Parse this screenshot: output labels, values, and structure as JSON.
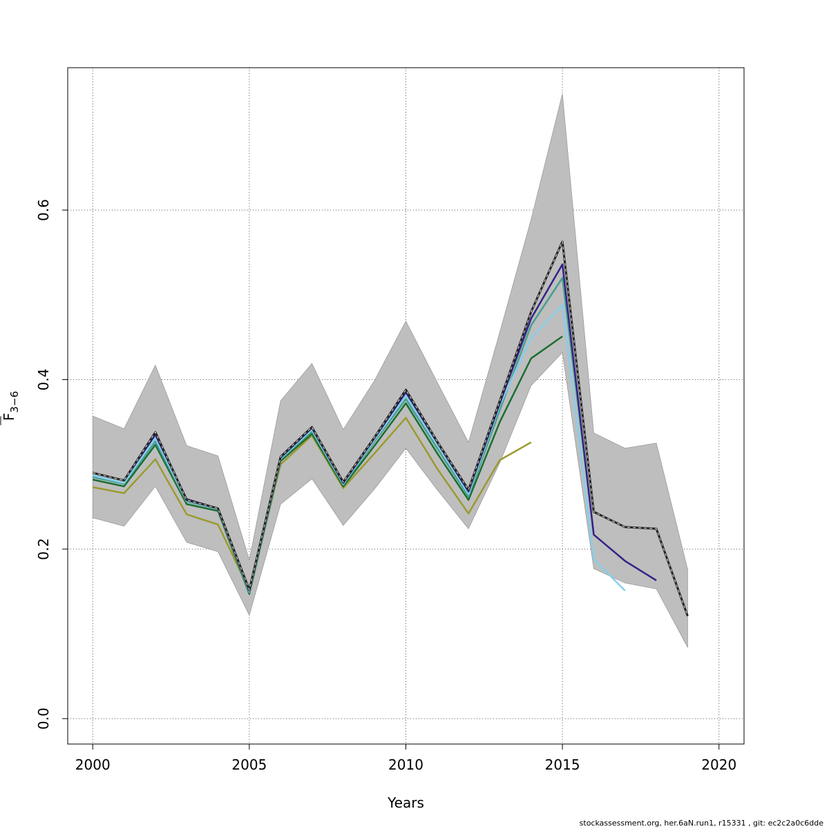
{
  "chart_data": {
    "type": "line",
    "xlabel": "Years",
    "ylabel": "F",
    "ylabel_sub": "3-6",
    "xlim": [
      1999.2,
      2020.8
    ],
    "ylim": [
      -0.03,
      0.768
    ],
    "x_ticks": [
      2000,
      2005,
      2010,
      2015,
      2020
    ],
    "y_ticks": [
      0.0,
      0.2,
      0.4,
      0.6
    ],
    "y_tick_labels": [
      "0.0",
      "0.2",
      "0.4",
      "0.6"
    ],
    "grid": true,
    "confidence_band": {
      "color": "#bebebe",
      "x": [
        2000,
        2001,
        2002,
        2003,
        2004,
        2005,
        2006,
        2007,
        2008,
        2009,
        2010,
        2011,
        2012,
        2013,
        2014,
        2015,
        2016,
        2017,
        2018,
        2019
      ],
      "lower": [
        0.237,
        0.227,
        0.274,
        0.208,
        0.197,
        0.122,
        0.253,
        0.283,
        0.228,
        0.271,
        0.319,
        0.27,
        0.224,
        0.302,
        0.393,
        0.432,
        0.177,
        0.16,
        0.153,
        0.084
      ],
      "upper": [
        0.357,
        0.342,
        0.417,
        0.322,
        0.31,
        0.187,
        0.375,
        0.419,
        0.341,
        0.399,
        0.469,
        0.397,
        0.326,
        0.456,
        0.589,
        0.737,
        0.337,
        0.319,
        0.325,
        0.176
      ]
    },
    "series": [
      {
        "color": "#9a9a30",
        "dashed": false,
        "x": [
          2000,
          2001,
          2002,
          2003,
          2004,
          2005,
          2006,
          2007,
          2008,
          2009,
          2010,
          2011,
          2012,
          2013,
          2014
        ],
        "values": [
          0.273,
          0.266,
          0.306,
          0.241,
          0.229,
          0.152,
          0.3,
          0.334,
          0.272,
          0.313,
          0.355,
          0.295,
          0.242,
          0.305,
          0.326
        ]
      },
      {
        "color": "#1a6e30",
        "dashed": false,
        "x": [
          2000,
          2001,
          2002,
          2003,
          2004,
          2005,
          2006,
          2007,
          2008,
          2009,
          2010,
          2011,
          2012,
          2013,
          2014,
          2015
        ],
        "values": [
          0.282,
          0.274,
          0.323,
          0.253,
          0.245,
          0.147,
          0.304,
          0.336,
          0.274,
          0.322,
          0.372,
          0.313,
          0.258,
          0.35,
          0.425,
          0.451
        ]
      },
      {
        "color": "#45a090",
        "dashed": false,
        "x": [
          2000,
          2001,
          2002,
          2003,
          2004,
          2005,
          2006,
          2007,
          2008,
          2009,
          2010,
          2011,
          2012,
          2013,
          2014,
          2015,
          2016
        ],
        "values": [
          0.285,
          0.277,
          0.327,
          0.256,
          0.247,
          0.149,
          0.306,
          0.339,
          0.276,
          0.327,
          0.377,
          0.319,
          0.262,
          0.364,
          0.464,
          0.52,
          0.219
        ]
      },
      {
        "color": "#87ceeb",
        "dashed": false,
        "x": [
          2000,
          2001,
          2002,
          2003,
          2004,
          2005,
          2006,
          2007,
          2008,
          2009,
          2010,
          2011,
          2012,
          2013,
          2014,
          2015,
          2016,
          2017
        ],
        "values": [
          0.287,
          0.278,
          0.331,
          0.257,
          0.247,
          0.15,
          0.307,
          0.341,
          0.277,
          0.329,
          0.381,
          0.323,
          0.265,
          0.37,
          0.449,
          0.488,
          0.188,
          0.151
        ]
      },
      {
        "color": "#332288",
        "dashed": false,
        "x": [
          2000,
          2001,
          2002,
          2003,
          2004,
          2005,
          2006,
          2007,
          2008,
          2009,
          2010,
          2011,
          2012,
          2013,
          2014,
          2015,
          2016,
          2017,
          2018
        ],
        "values": [
          0.29,
          0.281,
          0.335,
          0.259,
          0.248,
          0.151,
          0.308,
          0.343,
          0.278,
          0.331,
          0.385,
          0.326,
          0.268,
          0.372,
          0.472,
          0.536,
          0.217,
          0.186,
          0.163
        ]
      },
      {
        "color": "#222222",
        "dashed": true,
        "x": [
          2000,
          2001,
          2002,
          2003,
          2004,
          2005,
          2006,
          2007,
          2008,
          2009,
          2010,
          2011,
          2012,
          2013,
          2014,
          2015,
          2016,
          2017,
          2018,
          2019
        ],
        "values": [
          0.29,
          0.281,
          0.338,
          0.258,
          0.248,
          0.152,
          0.309,
          0.344,
          0.279,
          0.332,
          0.388,
          0.327,
          0.27,
          0.375,
          0.48,
          0.563,
          0.244,
          0.226,
          0.224,
          0.121
        ]
      }
    ]
  },
  "footer_text": "stockassessment.org, her.6aN.run1, r15331 , git: ec2c2a0c6dde"
}
